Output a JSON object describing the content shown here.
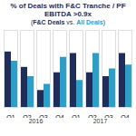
{
  "chart_data": {
    "type": "bar",
    "title": "% of Deals with F&C Tranche / PF EBITDA >0.9x",
    "subtitle": "(F&C Deals vs. All Deals)",
    "categories": [
      "Q1",
      "Q2",
      "Q3",
      "Q4",
      "Q1",
      "Q2",
      "Q3",
      "Q4"
    ],
    "group_labels": [
      "2016",
      "2017"
    ],
    "series": [
      {
        "name": "F&C Deals",
        "color": "#1f2d5a",
        "values": [
          72,
          52,
          22,
          45,
          70,
          45,
          40,
          70
        ]
      },
      {
        "name": "All Deals",
        "color": "#2b9fc7",
        "values": [
          60,
          40,
          30,
          65,
          35,
          70,
          50,
          55
        ]
      }
    ],
    "ylim": [
      0,
      100
    ],
    "yticks": [],
    "grid": false,
    "tick_labels": "x"
  }
}
